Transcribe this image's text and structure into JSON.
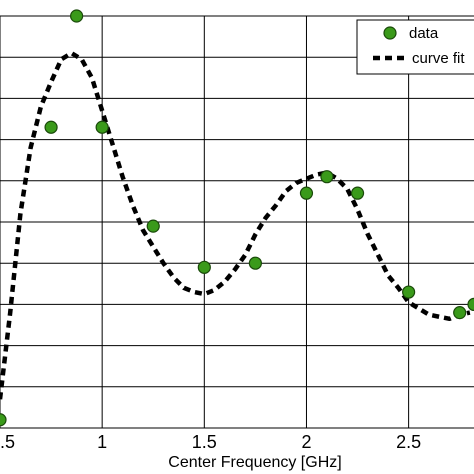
{
  "chart_data": {
    "type": "scatter",
    "title": "",
    "xlabel": "Center Frequency [GHz]",
    "ylabel": "",
    "xlim": [
      0.5,
      2.82
    ],
    "ylim": [
      0,
      1
    ],
    "x_ticks": [
      0.5,
      1.0,
      1.5,
      2.0,
      2.5
    ],
    "x_tick_labels": [
      ".5",
      "1",
      "1.5",
      "2",
      "2.5"
    ],
    "y_gridline_count": 10,
    "grid": true,
    "legend_position": "top-right",
    "series": [
      {
        "name": "data",
        "kind": "markers",
        "color": "#3a9a1a",
        "edge_color": "#1a4a0a",
        "x": [
          0.5,
          0.75,
          0.875,
          1.0,
          1.25,
          1.5,
          1.75,
          2.0,
          2.1,
          2.25,
          2.5,
          2.75,
          2.82
        ],
        "y": [
          0.02,
          0.73,
          1.0,
          0.73,
          0.49,
          0.39,
          0.4,
          0.57,
          0.61,
          0.57,
          0.33,
          0.28,
          0.3
        ]
      },
      {
        "name": "curve fit",
        "kind": "dashed-line",
        "color": "#000000",
        "x": [
          0.5,
          0.55,
          0.6,
          0.65,
          0.7,
          0.75,
          0.8,
          0.85,
          0.9,
          0.95,
          1.0,
          1.05,
          1.1,
          1.15,
          1.2,
          1.25,
          1.3,
          1.35,
          1.4,
          1.45,
          1.5,
          1.55,
          1.6,
          1.65,
          1.7,
          1.75,
          1.8,
          1.85,
          1.9,
          1.95,
          2.0,
          2.05,
          2.1,
          2.15,
          2.2,
          2.25,
          2.3,
          2.35,
          2.4,
          2.45,
          2.5,
          2.55,
          2.6,
          2.65,
          2.7,
          2.75,
          2.8
        ],
        "y": [
          0.07,
          0.28,
          0.52,
          0.68,
          0.78,
          0.84,
          0.895,
          0.91,
          0.895,
          0.85,
          0.77,
          0.69,
          0.61,
          0.54,
          0.48,
          0.44,
          0.4,
          0.365,
          0.34,
          0.33,
          0.325,
          0.335,
          0.355,
          0.385,
          0.42,
          0.47,
          0.51,
          0.54,
          0.575,
          0.595,
          0.605,
          0.615,
          0.62,
          0.605,
          0.58,
          0.53,
          0.47,
          0.42,
          0.37,
          0.34,
          0.305,
          0.29,
          0.275,
          0.27,
          0.265,
          0.275,
          0.28
        ]
      }
    ]
  }
}
